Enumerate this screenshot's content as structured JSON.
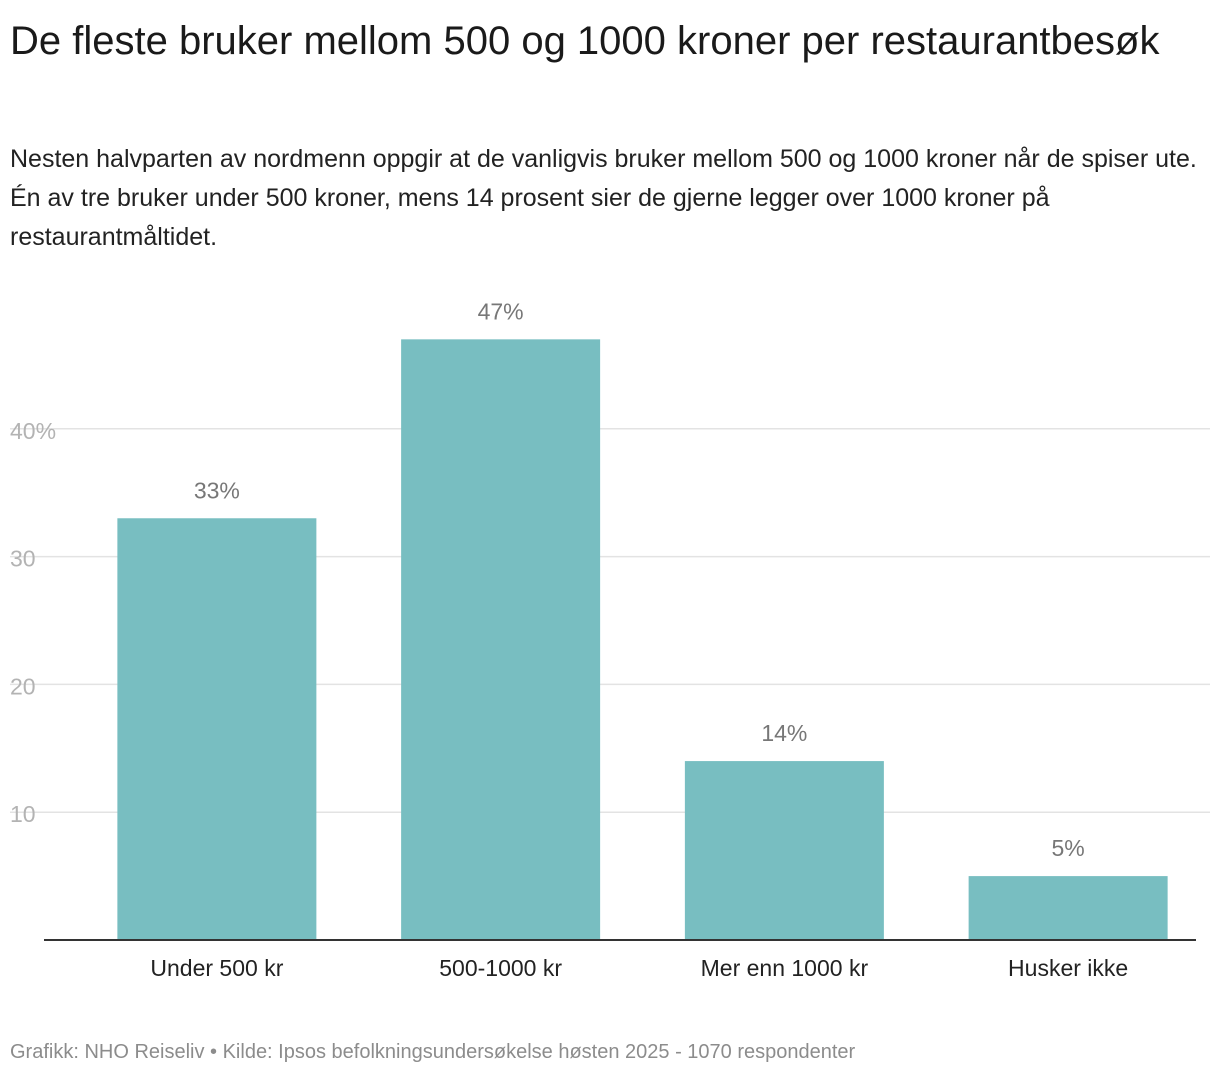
{
  "title": "De fleste bruker mellom 500 og 1000 kroner per restaurantbesøk",
  "subtitle": "Nesten halvparten av nordmenn oppgir at de vanligvis bruker mellom 500 og 1000 kroner når de spiser ute. Én av tre bruker under 500 kroner, mens 14 prosent sier de gjerne legger over 1000 kroner på restaurantmåltidet.",
  "footer": "Grafikk: NHO Reiseliv • Kilde: Ipsos befolkningsundersøkelse høsten 2025 - 1070 respondenter",
  "colors": {
    "bar": "#78bec1",
    "grid": "#e3e3e3",
    "axis": "#333333",
    "tick_label": "#b3b3b3",
    "value_label": "#777777",
    "category_label": "#222222"
  },
  "chart_data": {
    "type": "bar",
    "categories": [
      "Under 500 kr",
      "500-1000 kr",
      "Mer enn 1000 kr",
      "Husker ikke"
    ],
    "values": [
      33,
      47,
      14,
      5
    ],
    "value_labels": [
      "33%",
      "47%",
      "14%",
      "5%"
    ],
    "y_ticks": [
      10,
      20,
      30,
      40
    ],
    "y_tick_labels": [
      "10",
      "20",
      "30",
      "40%"
    ],
    "ylim": [
      0,
      47
    ],
    "grid": true,
    "xlabel": "",
    "ylabel": ""
  }
}
